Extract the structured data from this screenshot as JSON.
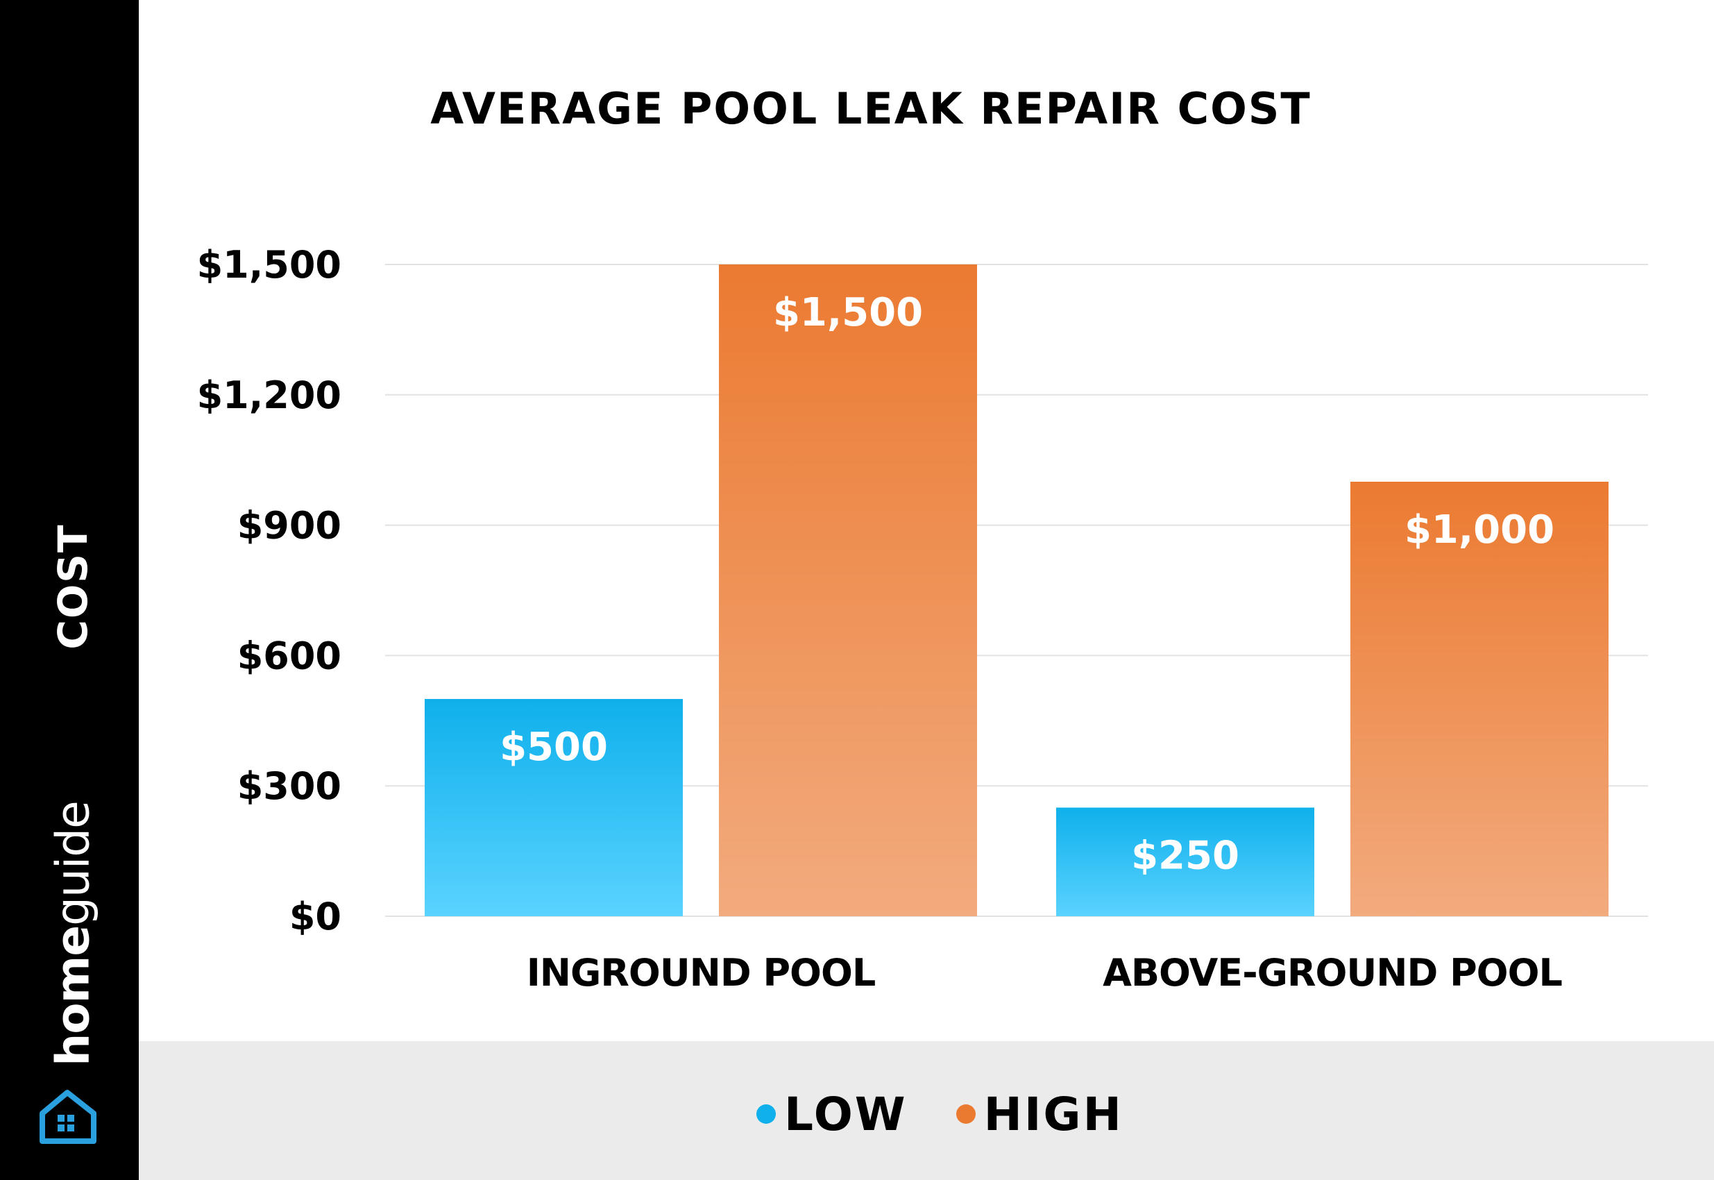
{
  "sidebar": {
    "axis_title": "COST",
    "brand_home": "home",
    "brand_guide": "guide",
    "logo_icon": "house-icon"
  },
  "colors": {
    "low": "#0fb0ec",
    "low_light": "#5ad3ff",
    "high": "#eb7a31",
    "high_light": "#f2ab7e",
    "sidebar": "#000000",
    "legend_band": "#ebebeb"
  },
  "chart_data": {
    "type": "bar",
    "title": "AVERAGE POOL LEAK REPAIR COST",
    "ylabel": "COST",
    "xlabel": "",
    "categories": [
      "INGROUND POOL",
      "ABOVE-GROUND POOL"
    ],
    "series": [
      {
        "name": "LOW",
        "values": [
          500,
          250
        ],
        "labels": [
          "$500",
          "$250"
        ]
      },
      {
        "name": "HIGH",
        "values": [
          1500,
          1000
        ],
        "labels": [
          "$1,500",
          "$1,000"
        ]
      }
    ],
    "ylim": [
      0,
      1500
    ],
    "yticks": [
      0,
      300,
      600,
      900,
      1200,
      1500
    ],
    "ytick_labels": [
      "$0",
      "$300",
      "$600",
      "$900",
      "$1,200",
      "$1,500"
    ],
    "grid": true,
    "legend": "bottom"
  }
}
